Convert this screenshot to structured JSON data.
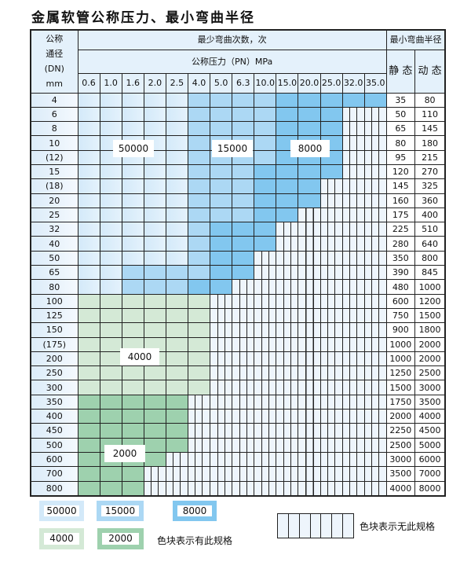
{
  "title": "金属软管公称压力、最小弯曲半径",
  "header": {
    "dn_label": [
      "公称",
      "通径",
      "(DN)",
      "mm"
    ],
    "cycles": "最少弯曲次数，次",
    "pressure": "公称压力（PN）MPa",
    "radius": "最小弯曲半径",
    "static": "静 态",
    "dynamic": "动 态"
  },
  "pressures": [
    "0.6",
    "1.0",
    "1.6",
    "2.0",
    "2.5",
    "4.0",
    "5.0",
    "6.3",
    "10.0",
    "15.0",
    "20.0",
    "25.0",
    "32.0",
    "35.0"
  ],
  "rows": [
    {
      "dn": "4",
      "p": "LLLLLMMMMDDDDD",
      "s": "35",
      "d": "80"
    },
    {
      "dn": "6",
      "p": "LLLLLMMMMDDDHH",
      "s": "50",
      "d": "110"
    },
    {
      "dn": "8",
      "p": "LLLLLMMMMDDDHH",
      "s": "65",
      "d": "145"
    },
    {
      "dn": "10",
      "p": "LLLLLMMMMDDDHH",
      "s": "80",
      "d": "180"
    },
    {
      "dn": "(12)",
      "p": "LLLLLMMMMDDDHH",
      "s": "95",
      "d": "215"
    },
    {
      "dn": "15",
      "p": "LLLLLMMMDDDDHH",
      "s": "120",
      "d": "270"
    },
    {
      "dn": "(18)",
      "p": "LLLLLMMMDDDHHH",
      "s": "145",
      "d": "325"
    },
    {
      "dn": "20",
      "p": "LLLLLMMMDDDHHH",
      "s": "160",
      "d": "360"
    },
    {
      "dn": "25",
      "p": "LLLLLMMMDDHHHH",
      "s": "175",
      "d": "400"
    },
    {
      "dn": "32",
      "p": "LLLLLMDDDHHHHH",
      "s": "225",
      "d": "510"
    },
    {
      "dn": "40",
      "p": "LLLLLMDDDHHHHH",
      "s": "280",
      "d": "640"
    },
    {
      "dn": "50",
      "p": "LLLLLMDDHHHHHH",
      "s": "350",
      "d": "800"
    },
    {
      "dn": "65",
      "p": "LLMMMMDDHHHHHH",
      "s": "390",
      "d": "845"
    },
    {
      "dn": "80",
      "p": "LLMMMDDHHHHHHH",
      "s": "480",
      "d": "1000"
    },
    {
      "dn": "100",
      "p": "GGGGGGHHHHHHHH",
      "s": "600",
      "d": "1200"
    },
    {
      "dn": "125",
      "p": "GGGGGGHHHHHHHH",
      "s": "750",
      "d": "1500"
    },
    {
      "dn": "150",
      "p": "GGGGGGHHHHHHHH",
      "s": "900",
      "d": "1800"
    },
    {
      "dn": "(175)",
      "p": "GGGGGGHHHHHHHH",
      "s": "1000",
      "d": "2000"
    },
    {
      "dn": "200",
      "p": "GGGGGGHHHHHHHH",
      "s": "1000",
      "d": "2000"
    },
    {
      "dn": "250",
      "p": "GGGGGGHHHHHHHH",
      "s": "1250",
      "d": "2500"
    },
    {
      "dn": "300",
      "p": "GGGGGGHHHHHHHH",
      "s": "1500",
      "d": "3000"
    },
    {
      "dn": "350",
      "p": "KKKKKHHHHHHHHH",
      "s": "1750",
      "d": "3500"
    },
    {
      "dn": "400",
      "p": "KKKKKHHHHHHHHH",
      "s": "2000",
      "d": "4000"
    },
    {
      "dn": "450",
      "p": "KKKKKHHHHHHHHH",
      "s": "2250",
      "d": "4500"
    },
    {
      "dn": "500",
      "p": "KKKKKHHHHHHHHH",
      "s": "2500",
      "d": "5000"
    },
    {
      "dn": "600",
      "p": "KKKKHHHHHHHHHH",
      "s": "3000",
      "d": "6000"
    },
    {
      "dn": "700",
      "p": "KKKHHHHHHHHHHH",
      "s": "3500",
      "d": "7000"
    },
    {
      "dn": "800",
      "p": "KKKHHHHHHHHHHH",
      "s": "4000",
      "d": "8000"
    }
  ],
  "region_labels": {
    "r50000": "50000",
    "r15000": "15000",
    "r8000": "8000",
    "r4000": "4000",
    "r2000": "2000"
  },
  "legend": {
    "items": [
      "50000",
      "15000",
      "8000",
      "4000",
      "2000"
    ],
    "available": "色块表示有此规格",
    "unavailable": "色块表示无此规格"
  },
  "colors": {
    "light_blue": "#d3e9f9",
    "mid_blue": "#acd8f4",
    "dark_blue": "#82c7ef",
    "light_green": "#d4e9d6",
    "green": "#9ed1ae",
    "unavailable": "#eef5fc"
  }
}
